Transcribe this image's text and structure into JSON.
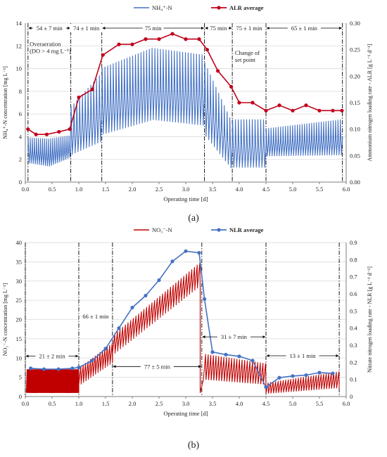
{
  "colors": {
    "nh4": "#4472C4",
    "alr": "#C0001A",
    "no3": "#C00000",
    "nlr": "#4472C4",
    "grid": "#D9D9D9",
    "axis": "#000000"
  },
  "chart_data": [
    {
      "type": "line",
      "panel_label": "(a)",
      "xlabel": "Operating time [d]",
      "ylabel_left": "NH₄⁺-N concentration [mg L⁻¹]",
      "ylabel_right": "Ammonium nitrogen loading rate - ALR [g L⁻¹ d⁻¹]",
      "xlim": [
        0,
        6
      ],
      "ylim_left": [
        0,
        14
      ],
      "ylim_right": [
        0,
        0.3
      ],
      "x_ticks": [
        0,
        0.5,
        1,
        1.5,
        2,
        2.5,
        3,
        3.5,
        4,
        4.5,
        5,
        5.5,
        6
      ],
      "x_tick_labels": [
        "0.0",
        "0.5",
        "1.0",
        "1.5",
        "2.0",
        "2.5",
        "3.0",
        "3.5",
        "4.0",
        "4.5",
        "5.0",
        "5.5",
        "6.0"
      ],
      "yl_ticks": [
        0,
        2,
        4,
        6,
        8,
        10,
        12,
        14
      ],
      "yl_tick_labels": [
        "0",
        "2",
        "4",
        "6",
        "8",
        "10",
        "12",
        "14"
      ],
      "yr_ticks": [
        0,
        0.05,
        0.1,
        0.15,
        0.2,
        0.25,
        0.3
      ],
      "yr_tick_labels": [
        "0.00",
        "0.05",
        "0.10",
        "0.15",
        "0.20",
        "0.25",
        "0.30"
      ],
      "grid": "horizontal",
      "legend": [
        {
          "name": "NH₄⁺-N",
          "marker": "line"
        },
        {
          "name": "ALR average",
          "marker": "line-dot"
        }
      ],
      "phase_boundaries": [
        0.05,
        0.85,
        1.43,
        3.35,
        3.87,
        4.5,
        5.93
      ],
      "phase_labels": [
        {
          "text": "54 ± 7 min",
          "from": 0.05,
          "to": 0.85
        },
        {
          "text": "74 ± 1 min",
          "from": 0.85,
          "to": 1.43
        },
        {
          "text": "75 min",
          "from": 1.43,
          "to": 3.35
        },
        {
          "text": "75 min",
          "from": 3.35,
          "to": 3.87
        },
        {
          "text": "75 ± 1 min",
          "from": 3.87,
          "to": 4.5
        },
        {
          "text": "65 ± 1 min",
          "from": 4.5,
          "to": 5.93
        }
      ],
      "annotations": [
        {
          "lines": [
            "Overaeration",
            "(DO > 4 mg L⁻¹)"
          ],
          "x": 0.08,
          "y": 12.0
        },
        {
          "lines": [
            "Change of",
            "set point"
          ],
          "x": 3.92,
          "y": 11.2
        }
      ],
      "series": [
        {
          "name": "NH₄⁺-N",
          "axis": "left",
          "kind": "oscillating",
          "segments": [
            {
              "x0": 0.05,
              "x1": 0.85,
              "period": 0.0375,
              "max": [
                3.9,
                3.8,
                4.1
              ],
              "min": [
                1.7,
                1.4,
                2.2
              ]
            },
            {
              "x0": 0.85,
              "x1": 1.43,
              "period": 0.051,
              "max": [
                6.5,
                9.5
              ],
              "min": [
                2.4,
                3.6
              ]
            },
            {
              "x0": 1.43,
              "x1": 3.35,
              "period": 0.052,
              "max": [
                10.0,
                11.8,
                11.2
              ],
              "min": [
                4.2,
                5.5,
                5.0
              ]
            },
            {
              "x0": 3.35,
              "x1": 3.87,
              "period": 0.052,
              "max": [
                10.8,
                5.4
              ],
              "min": [
                4.2,
                1.1
              ]
            },
            {
              "x0": 3.87,
              "x1": 4.5,
              "period": 0.052,
              "max": [
                5.5,
                5.5
              ],
              "min": [
                1.3,
                1.3
              ]
            },
            {
              "x0": 4.5,
              "x1": 5.93,
              "period": 0.045,
              "max": [
                4.7,
                5.5
              ],
              "min": [
                2.3,
                2.4
              ]
            }
          ]
        },
        {
          "name": "ALR average",
          "axis": "right",
          "x": [
            0.05,
            0.2,
            0.4,
            0.63,
            0.83,
            1.0,
            1.25,
            1.45,
            1.75,
            2.0,
            2.25,
            2.5,
            2.75,
            3.0,
            3.25,
            3.4,
            3.6,
            3.85,
            4.0,
            4.25,
            4.5,
            4.75,
            5.0,
            5.25,
            5.5,
            5.75,
            5.92
          ],
          "y": [
            0.1,
            0.09,
            0.09,
            0.095,
            0.1,
            0.16,
            0.175,
            0.24,
            0.26,
            0.26,
            0.27,
            0.27,
            0.28,
            0.27,
            0.27,
            0.25,
            0.21,
            0.18,
            0.15,
            0.15,
            0.135,
            0.145,
            0.135,
            0.145,
            0.135,
            0.135,
            0.135
          ]
        }
      ]
    },
    {
      "type": "line",
      "panel_label": "(b)",
      "xlabel": "Operating time [d]",
      "ylabel_left": "NO₃⁻-N concentration [mg L⁻¹]",
      "ylabel_right": "Nitrate nitrogen loading rate - NLR [g L⁻¹ d⁻¹]",
      "xlim": [
        0,
        6
      ],
      "ylim_left": [
        0,
        40
      ],
      "ylim_right": [
        0,
        0.9
      ],
      "x_ticks": [
        0,
        0.5,
        1,
        1.5,
        2,
        2.5,
        3,
        3.5,
        4,
        4.5,
        5,
        5.5,
        6
      ],
      "x_tick_labels": [
        "0.0",
        "0.5",
        "1.0",
        "1.5",
        "2.0",
        "2.5",
        "3.0",
        "3.5",
        "4.0",
        "4.5",
        "5.0",
        "5.5",
        "6.0"
      ],
      "yl_ticks": [
        0,
        5,
        10,
        15,
        20,
        25,
        30,
        35,
        40
      ],
      "yl_tick_labels": [
        "0",
        "5",
        "10",
        "15",
        "20",
        "25",
        "30",
        "35",
        "40"
      ],
      "yr_ticks": [
        0,
        0.1,
        0.2,
        0.3,
        0.4,
        0.5,
        0.6,
        0.7,
        0.8,
        0.9
      ],
      "yr_tick_labels": [
        "0",
        "0.1",
        "0.2",
        "0.3",
        "0.4",
        "0.5",
        "0.6",
        "0.7",
        "0.8",
        "0.9"
      ],
      "grid": "horizontal",
      "legend": [
        {
          "name": "NO₃⁻-N",
          "marker": "line"
        },
        {
          "name": "NLR average",
          "marker": "line-dot"
        }
      ],
      "phase_boundaries": [
        0.0,
        1.0,
        1.63,
        3.3,
        4.5,
        5.87
      ],
      "phase_labels": [
        {
          "text": "21 ± 2 min",
          "from": 0.0,
          "to": 1.0,
          "y": 10.5
        },
        {
          "text": "66 ± 1 min",
          "from": 1.0,
          "to": 1.63,
          "y": 20.8
        },
        {
          "text": "77 ± 5 min",
          "from": 1.63,
          "to": 3.3,
          "y": 7.8
        },
        {
          "text": "31 ± 7 min",
          "from": 3.3,
          "to": 4.5,
          "y": 15.5
        },
        {
          "text": "13 ± 1 min",
          "from": 4.5,
          "to": 5.87,
          "y": 10.6
        }
      ],
      "series": [
        {
          "name": "NO₃⁻-N",
          "axis": "left",
          "kind": "sawtooth",
          "segments": [
            {
              "x0": 0.02,
              "x1": 1.0,
              "period": 0.0145,
              "max": [
                7.0,
                7.0
              ],
              "min": [
                1.0,
                1.0
              ]
            },
            {
              "x0": 1.0,
              "x1": 1.63,
              "period": 0.046,
              "max": [
                7.5,
                14.0
              ],
              "min": [
                3.0,
                9.0
              ]
            },
            {
              "x0": 1.63,
              "x1": 3.27,
              "period": 0.049,
              "max": [
                16.0,
                35.0
              ],
              "min": [
                11.0,
                29.0
              ]
            },
            {
              "x0": 3.33,
              "x1": 4.5,
              "period": 0.049,
              "max": [
                11.0,
                8.5
              ],
              "min": [
                4.5,
                3.2
              ]
            },
            {
              "x0": 4.5,
              "x1": 5.87,
              "period": 0.048,
              "max": [
                3.5,
                6.5
              ],
              "min": [
                0.8,
                2.3
              ]
            }
          ],
          "gaps": [
            {
              "x": 3.27,
              "to_y": 1.0
            },
            {
              "x": 3.3,
              "to_y": 10.5
            }
          ]
        },
        {
          "name": "NLR average",
          "axis": "right",
          "x": [
            0.1,
            0.35,
            0.62,
            0.88,
            1.0,
            1.25,
            1.5,
            1.75,
            2.0,
            2.25,
            2.5,
            2.75,
            3.0,
            3.25,
            3.35,
            3.5,
            3.75,
            4.0,
            4.25,
            4.5,
            4.75,
            5.0,
            5.25,
            5.5,
            5.75
          ],
          "y": [
            0.165,
            0.16,
            0.16,
            0.165,
            0.17,
            0.21,
            0.28,
            0.4,
            0.52,
            0.59,
            0.68,
            0.79,
            0.85,
            0.84,
            0.57,
            0.26,
            0.245,
            0.235,
            0.21,
            0.055,
            0.11,
            0.12,
            0.125,
            0.14,
            0.135
          ]
        }
      ]
    }
  ]
}
